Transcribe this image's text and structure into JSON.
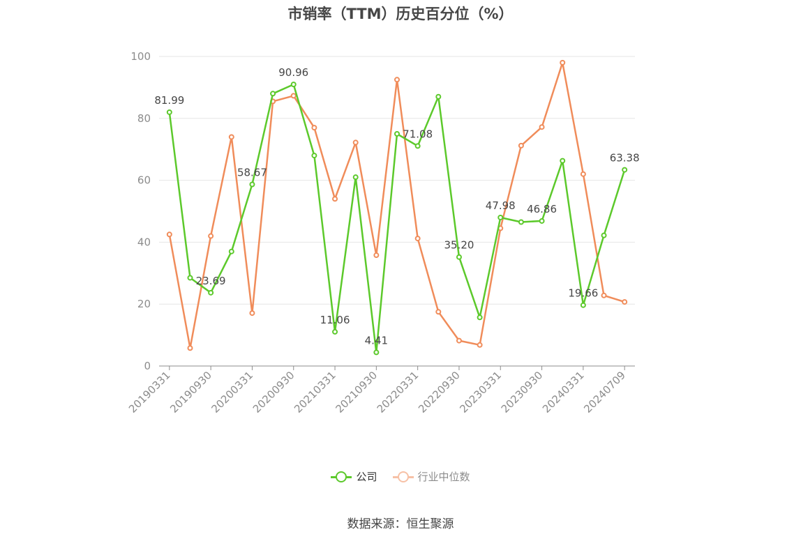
{
  "chart_data": {
    "type": "line",
    "title": "市销率（TTM）历史百分位（%）",
    "ylim": [
      0,
      100
    ],
    "yticks": [
      0,
      20,
      40,
      60,
      80,
      100
    ],
    "grid": true,
    "legend_position": "bottom",
    "x": [
      "20190331",
      "20190630",
      "20190930",
      "20191231",
      "20200331",
      "20200630",
      "20200930",
      "20201231",
      "20210331",
      "20210630",
      "20210930",
      "20211231",
      "20220331",
      "20220630",
      "20220930",
      "20221231",
      "20230331",
      "20230630",
      "20230930",
      "20231231",
      "20240331",
      "20240630",
      "20240709"
    ],
    "xtick_labels": [
      "20190331",
      "20190930",
      "20200331",
      "20200930",
      "20210331",
      "20210930",
      "20220331",
      "20220930",
      "20230331",
      "20230930",
      "20240331",
      "20240709"
    ],
    "series": [
      {
        "name": "公司",
        "color": "#5cc92b",
        "values": [
          81.99,
          28.5,
          23.69,
          37.0,
          58.67,
          88.0,
          90.96,
          68.0,
          11.06,
          61.0,
          4.41,
          75.0,
          71.08,
          87.0,
          35.2,
          15.7,
          47.98,
          46.5,
          46.86,
          66.3,
          19.66,
          42.2,
          63.38
        ],
        "labels": [
          "81.99",
          null,
          "23.69",
          null,
          "58.67",
          null,
          "90.96",
          null,
          "11.06",
          null,
          "4.41",
          null,
          "71.08",
          null,
          "35.20",
          null,
          "47.98",
          null,
          "46.86",
          null,
          "19.66",
          null,
          "63.38"
        ]
      },
      {
        "name": "行业中位数",
        "color": "#f08c5a",
        "values": [
          42.5,
          5.8,
          42.0,
          74.0,
          17.1,
          85.5,
          87.3,
          77.0,
          54.0,
          72.2,
          35.8,
          92.5,
          41.2,
          17.5,
          8.2,
          6.8,
          44.5,
          71.2,
          77.2,
          98.0,
          62.0,
          22.8,
          20.7
        ]
      }
    ]
  },
  "source": "数据来源：恒生聚源"
}
